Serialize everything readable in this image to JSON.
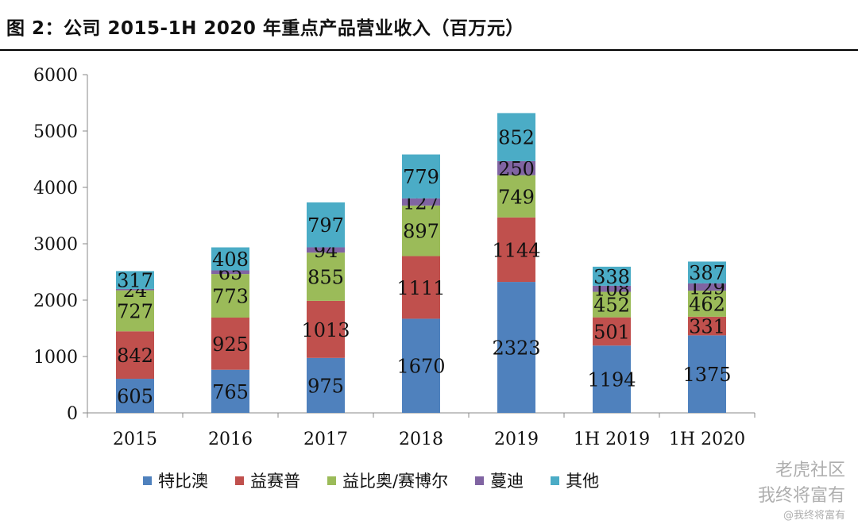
{
  "title": "图 2：公司 2015-1H 2020 年重点产品营业收入（百万元）",
  "watermark": {
    "line1": "我终将富有",
    "line2": "@我终将富有",
    "brand": "老虎社区"
  },
  "colors": {
    "特比澳": "#4f81bd",
    "益赛普": "#c0504d",
    "益比奥/赛博尔": "#9bbb59",
    "蔓迪": "#8064a2",
    "其他": "#4bacc6"
  },
  "chart_data": {
    "type": "bar",
    "stacked": true,
    "categories": [
      "2015",
      "2016",
      "2017",
      "2018",
      "2019",
      "1H 2019",
      "1H 2020"
    ],
    "series": [
      {
        "name": "特比澳",
        "color": "#4f81bd",
        "values": [
          605,
          765,
          975,
          1670,
          2323,
          1194,
          1375
        ]
      },
      {
        "name": "益赛普",
        "color": "#c0504d",
        "values": [
          842,
          925,
          1013,
          1111,
          1144,
          501,
          331
        ]
      },
      {
        "name": "益比奥/赛博尔",
        "color": "#9bbb59",
        "values": [
          727,
          773,
          855,
          897,
          749,
          452,
          462
        ]
      },
      {
        "name": "蔓迪",
        "color": "#8064a2",
        "values": [
          24,
          65,
          94,
          127,
          250,
          108,
          129
        ]
      },
      {
        "name": "其他",
        "color": "#4bacc6",
        "values": [
          317,
          408,
          797,
          779,
          852,
          338,
          387
        ]
      }
    ],
    "ylim": [
      0,
      6000
    ],
    "yticks": [
      0,
      1000,
      2000,
      3000,
      4000,
      5000,
      6000
    ],
    "legend_position": "bottom"
  }
}
